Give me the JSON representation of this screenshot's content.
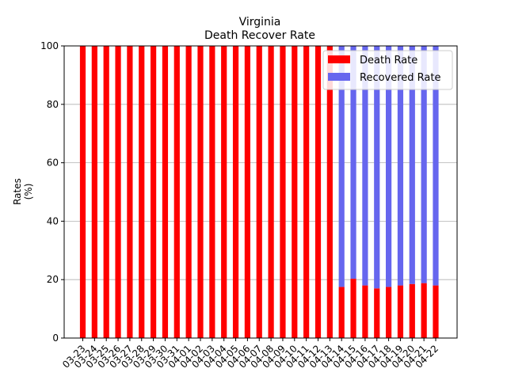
{
  "chart_data": {
    "type": "bar",
    "stacked": true,
    "title": "Virginia",
    "subtitle": "Death Recover Rate",
    "xlabel": "",
    "ylabel": "Rates\n(%)",
    "ylim": [
      0,
      100
    ],
    "yticks": [
      0,
      20,
      40,
      60,
      80,
      100
    ],
    "grid": "y",
    "legend_position": "top-right",
    "categories": [
      "03-23",
      "03-24",
      "03-25",
      "03-26",
      "03-27",
      "03-28",
      "03-29",
      "03-30",
      "03-31",
      "04-01",
      "04-02",
      "04-03",
      "04-04",
      "04-05",
      "04-06",
      "04-07",
      "04-08",
      "04-09",
      "04-10",
      "04-11",
      "04-12",
      "04-13",
      "04-14",
      "04-15",
      "04-16",
      "04-17",
      "04-18",
      "04-19",
      "04-20",
      "04-21",
      "04-22"
    ],
    "series": [
      {
        "name": "Death Rate",
        "color": "#ff0000",
        "values": [
          100,
          100,
          100,
          100,
          100,
          100,
          100,
          100,
          100,
          100,
          100,
          100,
          100,
          100,
          100,
          100,
          100,
          100,
          100,
          100,
          100,
          100,
          17.5,
          20.3,
          18.0,
          17.0,
          17.5,
          18.0,
          18.5,
          18.8,
          18.0
        ]
      },
      {
        "name": "Recovered Rate",
        "color": "#6666ee",
        "values": [
          0,
          0,
          0,
          0,
          0,
          0,
          0,
          0,
          0,
          0,
          0,
          0,
          0,
          0,
          0,
          0,
          0,
          0,
          0,
          0,
          0,
          0,
          82.5,
          79.7,
          82.0,
          83.0,
          82.5,
          82.0,
          81.5,
          81.2,
          82.0
        ]
      }
    ]
  }
}
